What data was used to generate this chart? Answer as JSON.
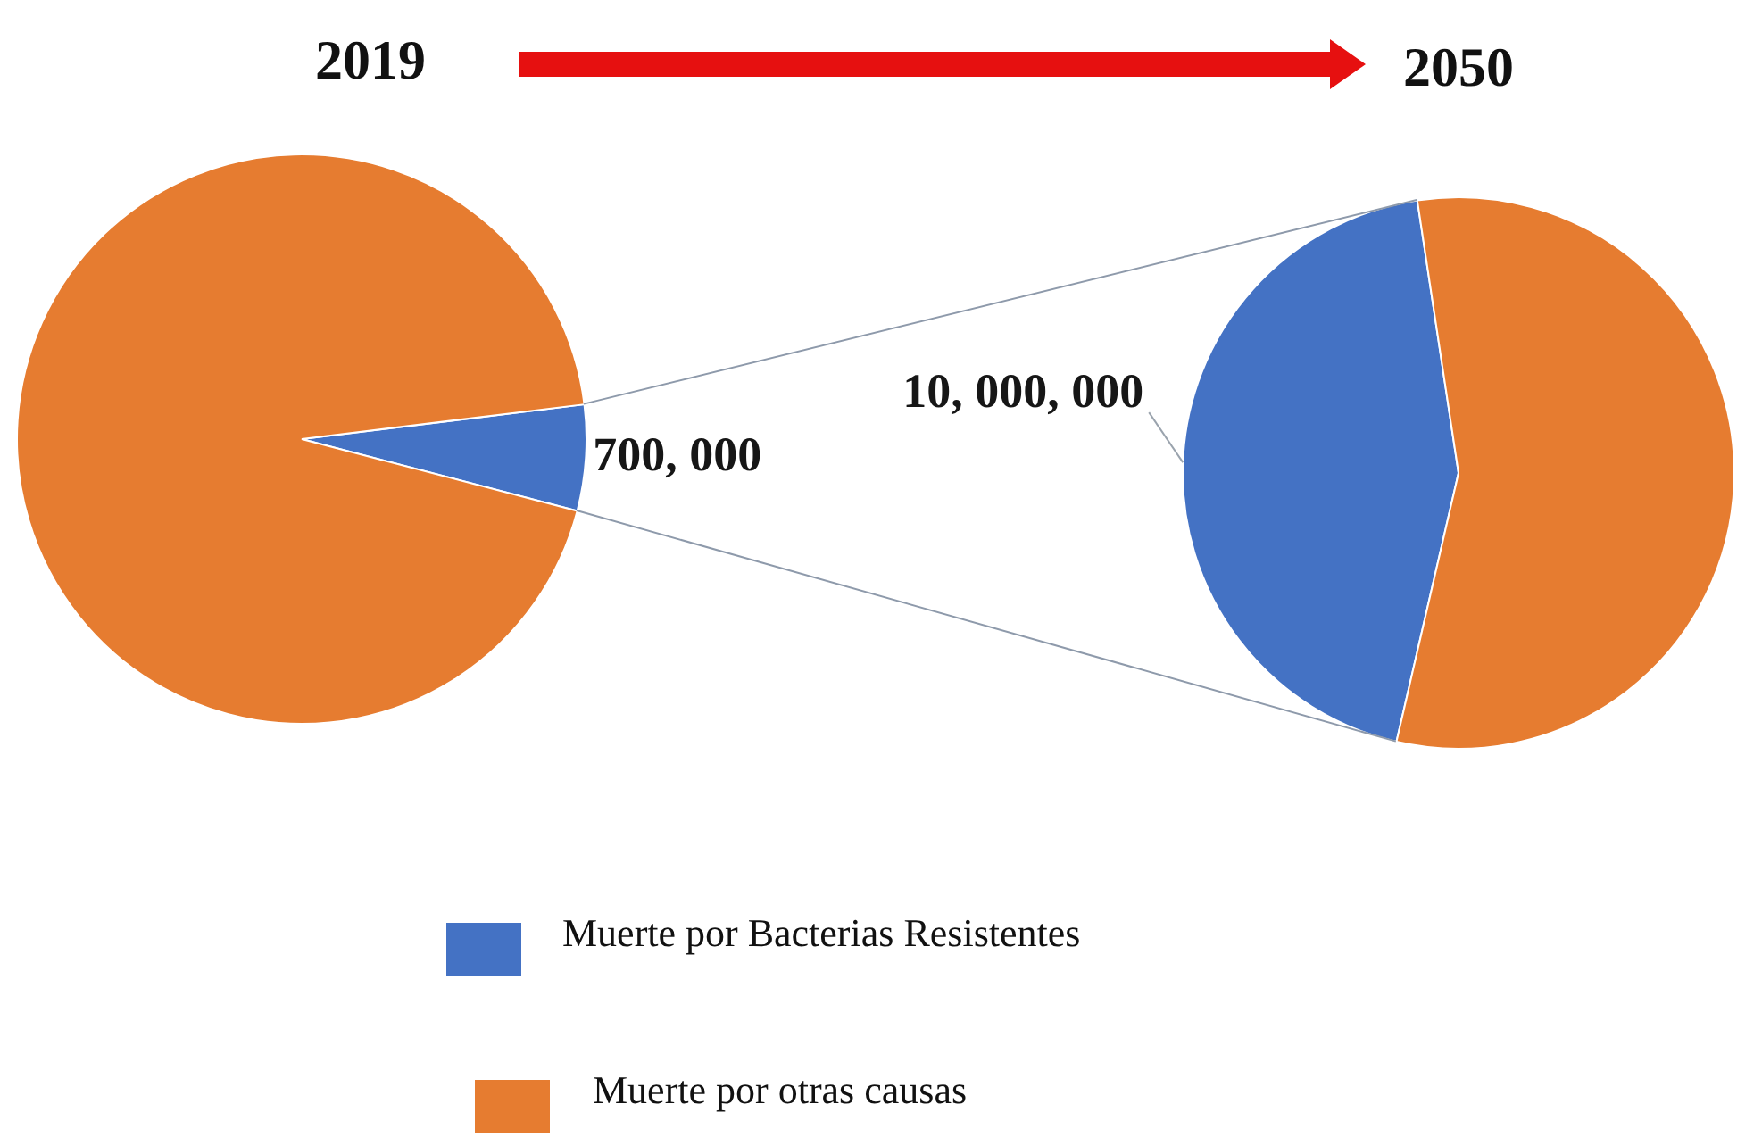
{
  "chart_data": [
    {
      "type": "pie",
      "title": "2019",
      "categories": [
        "Muerte por Bacterias Resistentes",
        "Muerte por otras causas"
      ],
      "values": [
        6,
        94
      ],
      "colors": [
        "#4472c4",
        "#e67c30"
      ],
      "annotations": [
        "700, 000"
      ],
      "legend": "bottom"
    },
    {
      "type": "pie",
      "title": "2050",
      "categories": [
        null,
        null
      ],
      "values": [
        44,
        56
      ],
      "colors": [
        "#4472c4",
        "#e67c30"
      ],
      "annotations": [
        "10, 000, 000"
      ]
    }
  ]
}
